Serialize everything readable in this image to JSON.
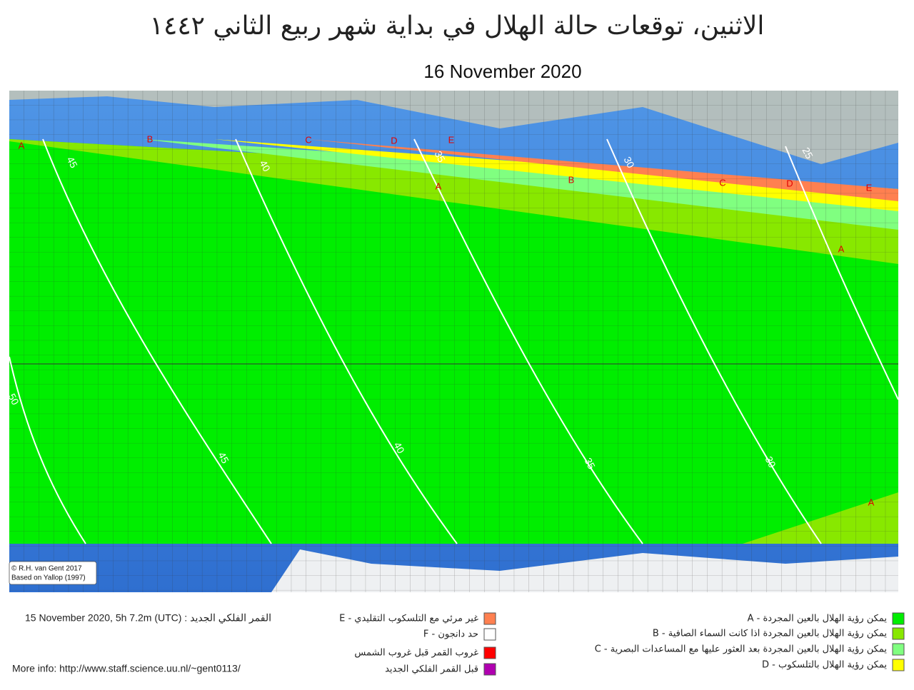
{
  "title": "الاثنين، توقعات حالة الهلال في بداية شهر ربيع الثاني ١٤٤٢",
  "date": "16 November 2020",
  "map": {
    "zone_labels": [
      "A",
      "B",
      "C",
      "D",
      "E",
      "A",
      "B",
      "C",
      "D",
      "E",
      "A",
      "A"
    ],
    "contour_labels": [
      "45",
      "40",
      "35",
      "30",
      "25",
      "50",
      "45",
      "40",
      "35",
      "30"
    ],
    "credits": [
      "© R.H. van Gent 2017",
      "Based on Yallop (1997)"
    ]
  },
  "new_moon": "15 November 2020, 5h 7.2m (UTC) : القمر الفلكي الجديد",
  "more_info": "More info: http://www.staff.science.uu.nl/~gent0113/",
  "legend": [
    {
      "label": "A - يمكن رؤية الهلال بالعين المجردة",
      "color": "#00ee00"
    },
    {
      "label": "B - يمكن رؤية الهلال بالعين المجردة اذا كانت السماء الصافية",
      "color": "#88e800"
    },
    {
      "label": "C - يمكن رؤية الهلال بالعين المجردة بعد العثور عليها مع المساعدات البصرية",
      "color": "#80ff80"
    },
    {
      "label": "D - يمكن رؤية الهلال بالتلسكوب",
      "color": "#ffff00"
    },
    {
      "label": "E - غير مرئي مع التلسكوب التقليدي",
      "color": "#ff8050"
    },
    {
      "label": "F - حد دانجون",
      "color": "#ffffff"
    },
    {
      "label": "غروب القمر قبل غروب الشمس",
      "color": "#ff0000"
    },
    {
      "label": "قبل القمر  الفلكي الجديد",
      "color": "#b000b0"
    }
  ]
}
